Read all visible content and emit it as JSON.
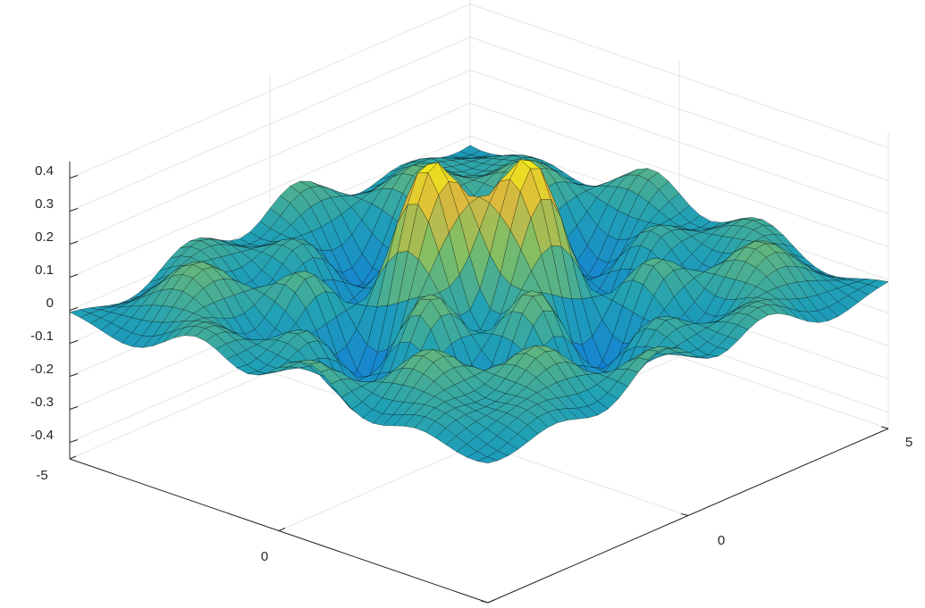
{
  "chart_data": {
    "type": "surface",
    "title": "",
    "xlabel": "",
    "ylabel": "",
    "zlabel": "",
    "xlim": [
      -5,
      5
    ],
    "ylim": [
      -5,
      5
    ],
    "zlim": [
      -0.45,
      0.45
    ],
    "x_ticks": [
      "-5",
      "0",
      "5"
    ],
    "y_ticks": [
      "0"
    ],
    "z_ticks": [
      "0.4",
      "0.3",
      "0.2",
      "0.1",
      "0",
      "-0.1",
      "-0.2",
      "-0.3",
      "-0.4"
    ],
    "grid": true,
    "colormap": "parula",
    "mesh": "triangulated",
    "colors": {
      "surface_low": "#352a87",
      "surface_mid": "#21a1b5",
      "surface_high": "#f9fb0e",
      "edges": "#000000",
      "grid": "#e6e6e6",
      "axes": "#262626"
    }
  }
}
